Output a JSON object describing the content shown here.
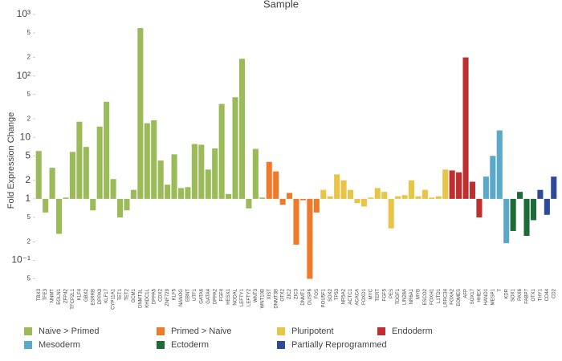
{
  "chart_data": {
    "type": "bar",
    "title": "Sample",
    "y_label": "Fold Expression Change",
    "log_scale": true,
    "grid": false,
    "ylim": [
      0.04,
      1000
    ],
    "yticks": [
      {
        "value": 0.05,
        "label": "5"
      },
      {
        "value": 0.1,
        "label": "10⁻¹"
      },
      {
        "value": 0.2,
        "label": "2"
      },
      {
        "value": 0.5,
        "label": "5"
      },
      1,
      2,
      5,
      10,
      {
        "value": 20,
        "label": "2"
      },
      {
        "value": 50,
        "label": "5"
      },
      {
        "value": 100,
        "label": "10²"
      },
      {
        "value": 200,
        "label": "2"
      },
      {
        "value": 500,
        "label": "5"
      },
      {
        "value": 1000,
        "label": "10³"
      }
    ],
    "series": [
      {
        "name": "Naive > Primed",
        "color": "#9bbb59",
        "categories": [
          "TBX3",
          "TFE3",
          "NNMT",
          "EGLN1",
          "ZFP42",
          "TFCP2L1",
          "KLF4",
          "GBX2",
          "ESRRB",
          "DPPA3",
          "KLF17",
          "CYP11A1",
          "TET1",
          "TET2",
          "GCM1",
          "DNMT3L",
          "KHDC1L",
          "DPPA5",
          "CDX2",
          "ZNF729",
          "KLF5",
          "NANOG",
          "EBNT",
          "UTF1",
          "GATA6",
          "GATA4",
          "DPPA2",
          "FGF4",
          "HESX1",
          "NODAL",
          "LEFTY1",
          "LEFTY2",
          "WNT3",
          "WNT10B"
        ],
        "values": [
          6,
          0.6,
          3.2,
          0.27,
          1.05,
          5.8,
          18,
          7,
          0.65,
          15,
          38,
          2.1,
          0.5,
          0.65,
          1.4,
          600,
          17,
          19,
          4.2,
          1.7,
          5.3,
          1.5,
          1.55,
          7.8,
          7.6,
          3,
          6.6,
          35,
          1.2,
          45,
          190,
          0.7,
          6.5,
          1.05
        ]
      },
      {
        "name": "Primed > Naive",
        "color": "#ee7a2a",
        "categories": [
          "XIST",
          "DNMT3B",
          "OTX2",
          "ZIC2",
          "ZIC3",
          "DNMT1",
          "DUSP6",
          "FOS"
        ],
        "values": [
          4,
          2.8,
          0.8,
          1.25,
          0.18,
          0.95,
          0.05,
          0.6
        ]
      },
      {
        "name": "Pluripotent",
        "color": "#e8c547",
        "categories": [
          "POU5F1",
          "SOX2",
          "TP53",
          "NR5A2",
          "ACTC1",
          "ACACA",
          "FOXD1",
          "MYC",
          "TERT",
          "FGF5",
          "PES",
          "TDGF1",
          "LIN28A",
          "NR6A1",
          "MYB",
          "ESCO2",
          "FOXH1",
          "L1TD1",
          "LRRC34"
        ],
        "values": [
          1.4,
          1.1,
          2.5,
          2,
          1.4,
          0.85,
          0.75,
          1.05,
          1.5,
          1.3,
          0.33,
          1.1,
          1.15,
          2,
          1.1,
          1.4,
          1.05,
          1.1,
          3
        ]
      },
      {
        "name": "Endoderm",
        "color": "#be3030",
        "categories": [
          "FOXA2",
          "EOMES",
          "AFP",
          "SOX17",
          "HHEX"
        ],
        "values": [
          2.9,
          2.7,
          200,
          1.9,
          0.5
        ]
      },
      {
        "name": "Mesoderm",
        "color": "#5aa9c8",
        "categories": [
          "HAND1",
          "MESP1",
          "T",
          "KDR"
        ],
        "values": [
          2.3,
          5,
          13,
          0.19
        ]
      },
      {
        "name": "Ectoderm",
        "color": "#1e6b3a",
        "categories": [
          "SOX1",
          "PAX6",
          "FABP7",
          "OTX1"
        ],
        "values": [
          0.3,
          1.3,
          0.25,
          0.45
        ]
      },
      {
        "name": "Partially Reprogrammed",
        "color": "#2e4a9a",
        "categories": [
          "THY1",
          "CD44",
          "CD2"
        ],
        "values": [
          1.4,
          0.55,
          2.3
        ]
      }
    ]
  }
}
